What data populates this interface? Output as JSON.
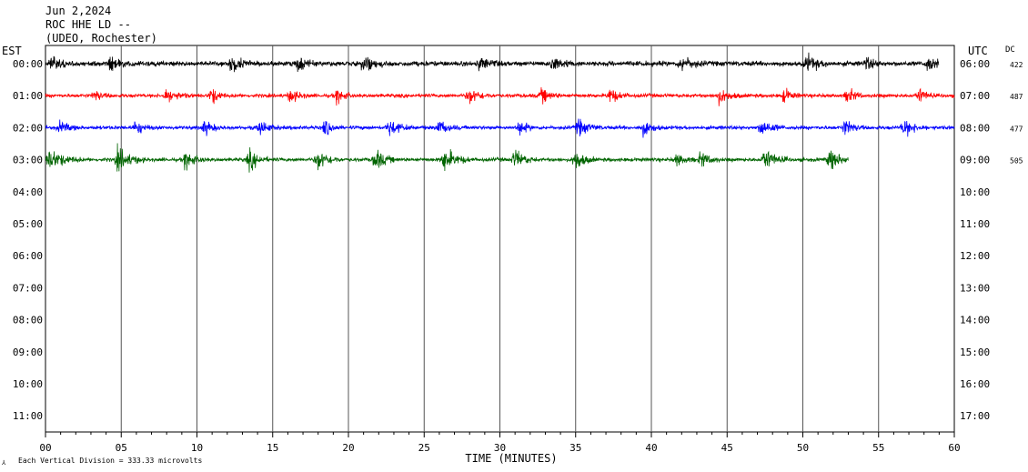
{
  "header": {
    "date": "Jun 2,2024",
    "station": "ROC HHE LD --",
    "location": "(UDEO, Rochester)"
  },
  "chart_data": {
    "type": "line",
    "subtype": "helicorder",
    "xlabel": "TIME (MINUTES)",
    "xlim": [
      0,
      60
    ],
    "x_ticks": [
      "00",
      "05",
      "10",
      "15",
      "20",
      "25",
      "30",
      "35",
      "40",
      "45",
      "50",
      "55",
      "60"
    ],
    "left_axis_label": "EST",
    "right_axis_label": "UTC",
    "dc_label": "DC",
    "left_row_labels": [
      "00:00",
      "01:00",
      "02:00",
      "03:00",
      "04:00",
      "05:00",
      "06:00",
      "07:00",
      "08:00",
      "09:00",
      "10:00",
      "11:00"
    ],
    "right_row_labels": [
      "06:00",
      "07:00",
      "08:00",
      "09:00",
      "10:00",
      "11:00",
      "12:00",
      "13:00",
      "14:00",
      "15:00",
      "16:00",
      "17:00"
    ],
    "grid": "vertical lines every 5 minutes",
    "footer_note": "Each Vertical Division =  333.33 microvolts",
    "series": [
      {
        "row": 0,
        "color": "#000000",
        "dc": "422",
        "end_minute": 59,
        "noise": 4,
        "bursts": [
          [
            0.5,
            10,
            0.5
          ],
          [
            4.3,
            13,
            0.4
          ],
          [
            12.3,
            14,
            0.5
          ],
          [
            16.7,
            12,
            0.4
          ],
          [
            21.0,
            13,
            0.6
          ],
          [
            28.7,
            11,
            0.5
          ],
          [
            33.5,
            11,
            0.6
          ],
          [
            42.0,
            12,
            0.6
          ],
          [
            50.3,
            13,
            0.6
          ],
          [
            54.2,
            9,
            0.5
          ],
          [
            58.3,
            13,
            0.4
          ]
        ]
      },
      {
        "row": 1,
        "color": "#ff0000",
        "dc": "487",
        "end_minute": 60,
        "noise": 3,
        "bursts": [
          [
            3.3,
            8,
            0.4
          ],
          [
            8.0,
            11,
            0.6
          ],
          [
            11.0,
            13,
            0.4
          ],
          [
            16.2,
            10,
            0.5
          ],
          [
            19.3,
            12,
            0.4
          ],
          [
            28.0,
            13,
            0.6
          ],
          [
            32.8,
            11,
            0.5
          ],
          [
            37.3,
            12,
            0.5
          ],
          [
            44.5,
            12,
            0.6
          ],
          [
            48.8,
            11,
            0.4
          ],
          [
            53.0,
            12,
            0.4
          ],
          [
            57.7,
            12,
            0.4
          ]
        ]
      },
      {
        "row": 2,
        "color": "#0000ff",
        "dc": "477",
        "end_minute": 60,
        "noise": 3,
        "bursts": [
          [
            1.0,
            9,
            0.5
          ],
          [
            6.0,
            13,
            0.4
          ],
          [
            10.5,
            11,
            0.5
          ],
          [
            14.2,
            11,
            0.5
          ],
          [
            18.5,
            12,
            0.4
          ],
          [
            22.7,
            13,
            0.6
          ],
          [
            26.0,
            11,
            0.5
          ],
          [
            31.3,
            12,
            0.4
          ],
          [
            35.2,
            13,
            0.6
          ],
          [
            39.5,
            13,
            0.5
          ],
          [
            47.3,
            13,
            0.6
          ],
          [
            52.8,
            12,
            0.5
          ],
          [
            56.7,
            13,
            0.6
          ]
        ]
      },
      {
        "row": 3,
        "color": "#006400",
        "dc": "505",
        "end_minute": 53,
        "noise": 3,
        "bursts": [
          [
            0.3,
            17,
            0.8
          ],
          [
            4.8,
            19,
            0.7
          ],
          [
            9.3,
            15,
            0.5
          ],
          [
            13.5,
            16,
            0.5
          ],
          [
            18.0,
            17,
            0.6
          ],
          [
            21.8,
            18,
            0.5
          ],
          [
            26.3,
            19,
            0.7
          ],
          [
            31.0,
            15,
            0.6
          ],
          [
            35.0,
            17,
            0.5
          ],
          [
            41.7,
            9,
            0.5
          ],
          [
            43.3,
            12,
            0.5
          ],
          [
            47.5,
            18,
            0.6
          ],
          [
            51.8,
            17,
            0.6
          ]
        ]
      }
    ]
  }
}
